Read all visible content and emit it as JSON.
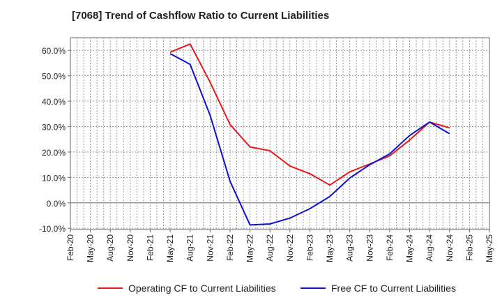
{
  "title": "[7068]  Trend of Cashflow Ratio to Current Liabilities",
  "chart_data": {
    "type": "line",
    "x": [
      "Feb-20",
      "May-20",
      "Aug-20",
      "Nov-20",
      "Feb-21",
      "May-21",
      "Aug-21",
      "Nov-21",
      "Feb-22",
      "May-22",
      "Aug-22",
      "Nov-22",
      "Feb-23",
      "May-23",
      "Aug-23",
      "Nov-23",
      "Feb-24",
      "May-24",
      "Aug-24",
      "Nov-24",
      "Feb-25",
      "May-25"
    ],
    "yticks": [
      "60.0%",
      "50.0%",
      "40.0%",
      "30.0%",
      "20.0%",
      "10.0%",
      "0.0%",
      "-10.0%"
    ],
    "ytick_values": [
      60,
      50,
      40,
      30,
      20,
      10,
      0,
      -10
    ],
    "ylim": [
      -10.5,
      65
    ],
    "grid": true,
    "legend_position": "bottom",
    "series": [
      {
        "name": "Operating CF to Current Liabilities",
        "color": "#e31a1c",
        "values": [
          null,
          null,
          null,
          null,
          null,
          59.3,
          62.5,
          47.5,
          30.8,
          22.0,
          20.5,
          14.5,
          11.5,
          7.0,
          12.2,
          15.3,
          18.5,
          24.7,
          31.8,
          29.5,
          null,
          null
        ]
      },
      {
        "name": "Free CF to Current Liabilities",
        "color": "#1010d0",
        "values": [
          null,
          null,
          null,
          null,
          null,
          58.7,
          54.5,
          34.5,
          8.5,
          -8.7,
          -8.3,
          -6.0,
          -2.3,
          2.5,
          9.8,
          15.0,
          19.3,
          26.5,
          31.8,
          27.2,
          null,
          null
        ]
      }
    ]
  }
}
